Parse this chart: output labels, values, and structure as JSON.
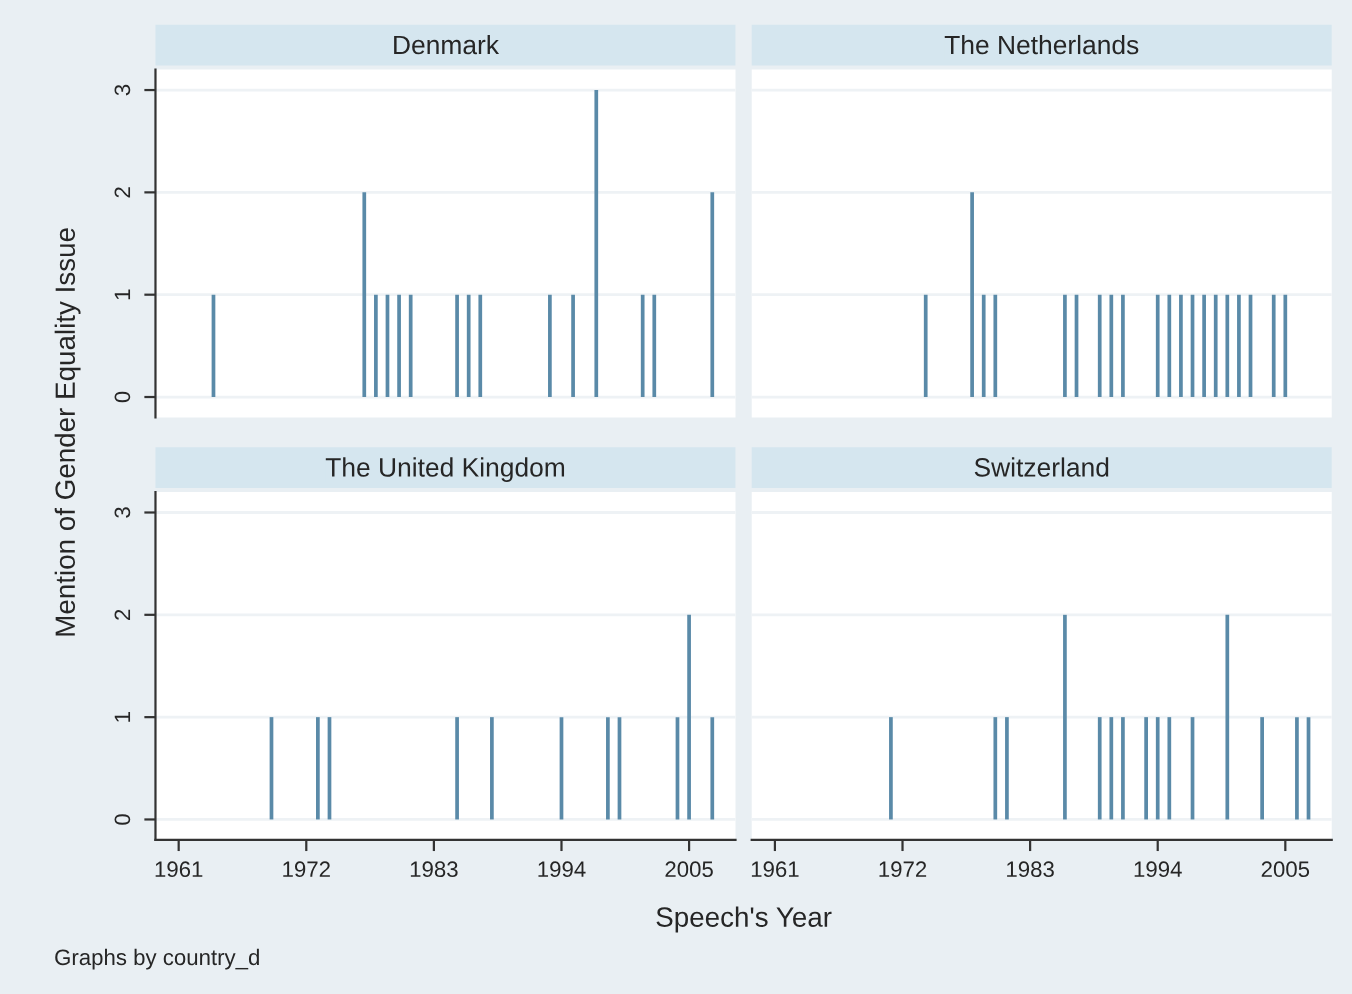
{
  "chart_data": [
    {
      "type": "bar",
      "title": "Denmark",
      "ylabel": "Mention of Gender Equality Issue",
      "color": "#5a8aa8",
      "x": [
        1964,
        1977,
        1978,
        1979,
        1980,
        1981,
        1985,
        1986,
        1987,
        1993,
        1995,
        1997,
        2001,
        2002,
        2007
      ],
      "values": [
        1,
        2,
        1,
        1,
        1,
        1,
        1,
        1,
        1,
        1,
        1,
        3,
        1,
        1,
        2
      ],
      "xlim": [
        1959,
        2009
      ],
      "xticks": [
        1961,
        1972,
        1983,
        1994,
        2005
      ],
      "ylim": [
        -0.2,
        3.2
      ],
      "yticks": [
        0,
        1,
        2,
        3
      ],
      "grid": "y",
      "tick_labels": "y"
    },
    {
      "type": "bar",
      "title": "The Netherlands",
      "color": "#5a8aa8",
      "x": [
        1974,
        1978,
        1979,
        1980,
        1986,
        1987,
        1989,
        1990,
        1991,
        1994,
        1995,
        1996,
        1997,
        1998,
        1999,
        2000,
        2001,
        2002,
        2004,
        2005
      ],
      "values": [
        1,
        2,
        1,
        1,
        1,
        1,
        1,
        1,
        1,
        1,
        1,
        1,
        1,
        1,
        1,
        1,
        1,
        1,
        1,
        1
      ],
      "xlim": [
        1959,
        2009
      ],
      "xticks": [
        1961,
        1972,
        1983,
        1994,
        2005
      ],
      "ylim": [
        -0.2,
        3.2
      ],
      "yticks": [
        0,
        1,
        2,
        3
      ],
      "grid": "y",
      "tick_labels": false
    },
    {
      "type": "bar",
      "title": "The United Kingdom",
      "xlabel": "Speech's Year",
      "annotations": [
        "Graphs by country_d"
      ],
      "color": "#5a8aa8",
      "x": [
        1969,
        1973,
        1974,
        1985,
        1988,
        1994,
        1998,
        1999,
        2004,
        2005,
        2007
      ],
      "values": [
        1,
        1,
        1,
        1,
        1,
        1,
        1,
        1,
        1,
        2,
        1
      ],
      "xlim": [
        1959,
        2009
      ],
      "xticks": [
        1961,
        1972,
        1983,
        1994,
        2005
      ],
      "ylim": [
        -0.2,
        3.2
      ],
      "yticks": [
        0,
        1,
        2,
        3
      ],
      "grid": "y"
    },
    {
      "type": "bar",
      "title": "Switzerland",
      "color": "#5a8aa8",
      "x": [
        1971,
        1980,
        1981,
        1986,
        1989,
        1990,
        1991,
        1993,
        1994,
        1995,
        1997,
        2000,
        2003,
        2006,
        2007
      ],
      "values": [
        1,
        1,
        1,
        2,
        1,
        1,
        1,
        1,
        1,
        1,
        1,
        2,
        1,
        1,
        1
      ],
      "xlim": [
        1959,
        2009
      ],
      "xticks": [
        1961,
        1972,
        1983,
        1994,
        2005
      ],
      "ylim": [
        -0.2,
        3.2
      ],
      "yticks": [
        0,
        1,
        2,
        3
      ],
      "grid": "y",
      "tick_labels": "x"
    }
  ]
}
